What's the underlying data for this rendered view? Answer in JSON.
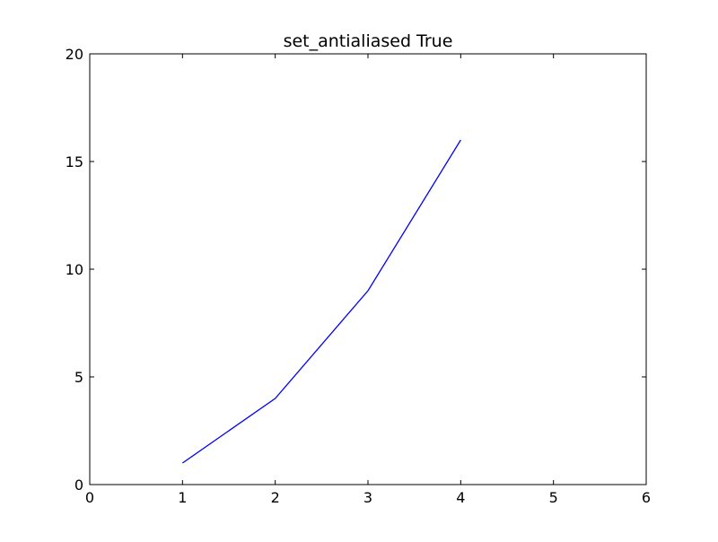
{
  "chart_data": {
    "type": "line",
    "title": "set_antialiased True",
    "xlabel": "",
    "ylabel": "",
    "xlim": [
      0,
      6
    ],
    "ylim": [
      0,
      20
    ],
    "xticks": [
      0,
      1,
      2,
      3,
      4,
      5,
      6
    ],
    "yticks": [
      0,
      5,
      10,
      15,
      20
    ],
    "xtick_labels": [
      "0",
      "1",
      "2",
      "3",
      "4",
      "5",
      "6"
    ],
    "ytick_labels": [
      "0",
      "5",
      "10",
      "15",
      "20"
    ],
    "grid": false,
    "legend": "none",
    "series": [
      {
        "x": [
          1,
          2,
          3,
          4
        ],
        "y": [
          1,
          4,
          9,
          16
        ],
        "color": "#0000ff"
      }
    ]
  }
}
